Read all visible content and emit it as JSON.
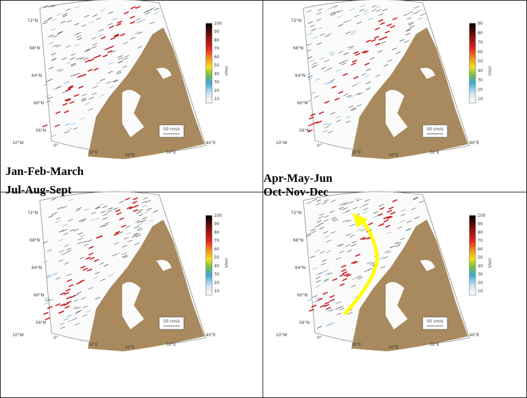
{
  "panels": [
    {
      "title": "Jan-Feb-March",
      "colorbar": {
        "unit": "cm/s",
        "ticks": [
          10,
          20,
          30,
          40,
          50,
          60,
          70,
          80,
          90,
          100
        ]
      },
      "scale": "50 cm/s",
      "lat_labels": [
        "72°N",
        "68°N",
        "64°N",
        "60°N",
        "56°N"
      ],
      "lon_labels": [
        "10°W",
        "0°",
        "10°E",
        "20°E",
        "30°E",
        "40°E"
      ]
    },
    {
      "title": "Apr-May-Jun",
      "colorbar": {
        "unit": "cm/s",
        "ticks": [
          10,
          20,
          30,
          40,
          50,
          60,
          70,
          80,
          90
        ]
      },
      "scale": "50 cm/s",
      "lat_labels": [
        "72°N",
        "68°N",
        "64°N",
        "60°N",
        "56°N"
      ],
      "lon_labels": [
        "10°W",
        "0°",
        "10°E",
        "20°E",
        "30°E",
        "40°E"
      ]
    },
    {
      "title": "Jul-Aug-Sept",
      "colorbar": {
        "unit": "cm/s",
        "ticks": [
          10,
          20,
          30,
          40,
          50,
          60,
          70,
          80,
          90,
          100
        ]
      },
      "scale": "50 cm/s",
      "lat_labels": [
        "72°N",
        "68°N",
        "64°N",
        "60°N",
        "56°N"
      ],
      "lon_labels": [
        "10°W",
        "0°",
        "10°E",
        "20°E",
        "30°E",
        "40°E"
      ]
    },
    {
      "title": "Oct-Nov-Dec",
      "colorbar": {
        "unit": "cm/s",
        "ticks": [
          10,
          20,
          30,
          40,
          50,
          60,
          70,
          80,
          90,
          100
        ]
      },
      "scale": "50 cm/s",
      "lat_labels": [
        "72°N",
        "68°N",
        "64°N",
        "60°N",
        "56°N"
      ],
      "lon_labels": [
        "10°W",
        "0°",
        "10°E",
        "20°E",
        "30°E",
        "40°E"
      ]
    }
  ]
}
